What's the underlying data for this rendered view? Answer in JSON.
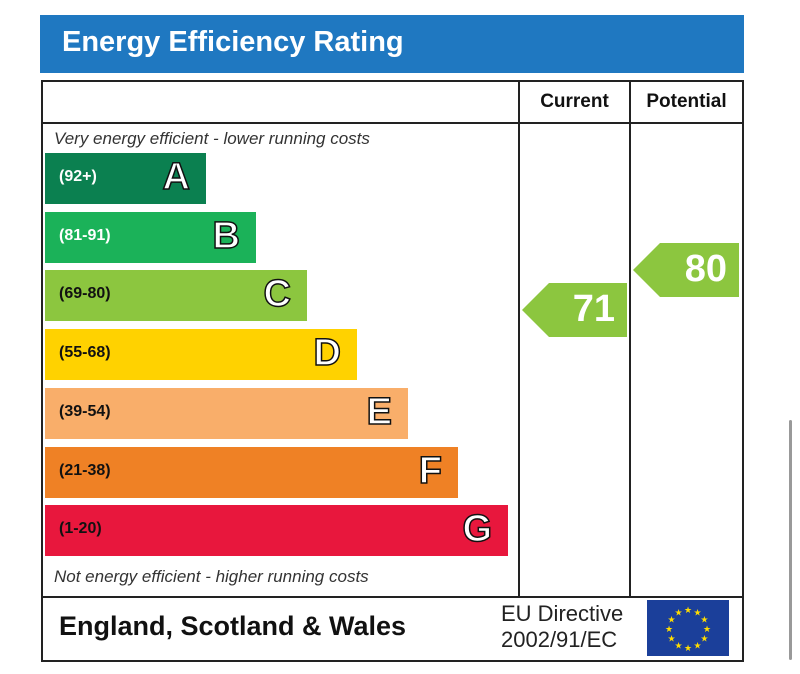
{
  "title": "Energy Efficiency Rating",
  "columns": {
    "current": "Current",
    "potential": "Potential"
  },
  "notes": {
    "top": "Very energy efficient - lower running costs",
    "bottom": "Not energy efficient - higher running costs"
  },
  "footer": {
    "region": "England, Scotland & Wales",
    "directive_line1": "EU Directive",
    "directive_line2": "2002/91/EC"
  },
  "chart_data": {
    "type": "bar",
    "title": "Energy Efficiency Rating",
    "bands": [
      {
        "letter": "A",
        "range": "(92+)",
        "color": "#0b8050",
        "text_color": "#ffffff"
      },
      {
        "letter": "B",
        "range": "(81-91)",
        "color": "#1bb259",
        "text_color": "#ffffff"
      },
      {
        "letter": "C",
        "range": "(69-80)",
        "color": "#8cc63f",
        "text_color": "#111111"
      },
      {
        "letter": "D",
        "range": "(55-68)",
        "color": "#ffd200",
        "text_color": "#111111"
      },
      {
        "letter": "E",
        "range": "(39-54)",
        "color": "#f9ae6a",
        "text_color": "#111111"
      },
      {
        "letter": "F",
        "range": "(21-38)",
        "color": "#ef8125",
        "text_color": "#111111"
      },
      {
        "letter": "G",
        "range": "(1-20)",
        "color": "#e8173d",
        "text_color": "#111111"
      }
    ],
    "current": {
      "value": 71,
      "band": "C",
      "color": "#8cc63f"
    },
    "potential": {
      "value": 80,
      "band": "C",
      "color": "#8cc63f"
    }
  }
}
